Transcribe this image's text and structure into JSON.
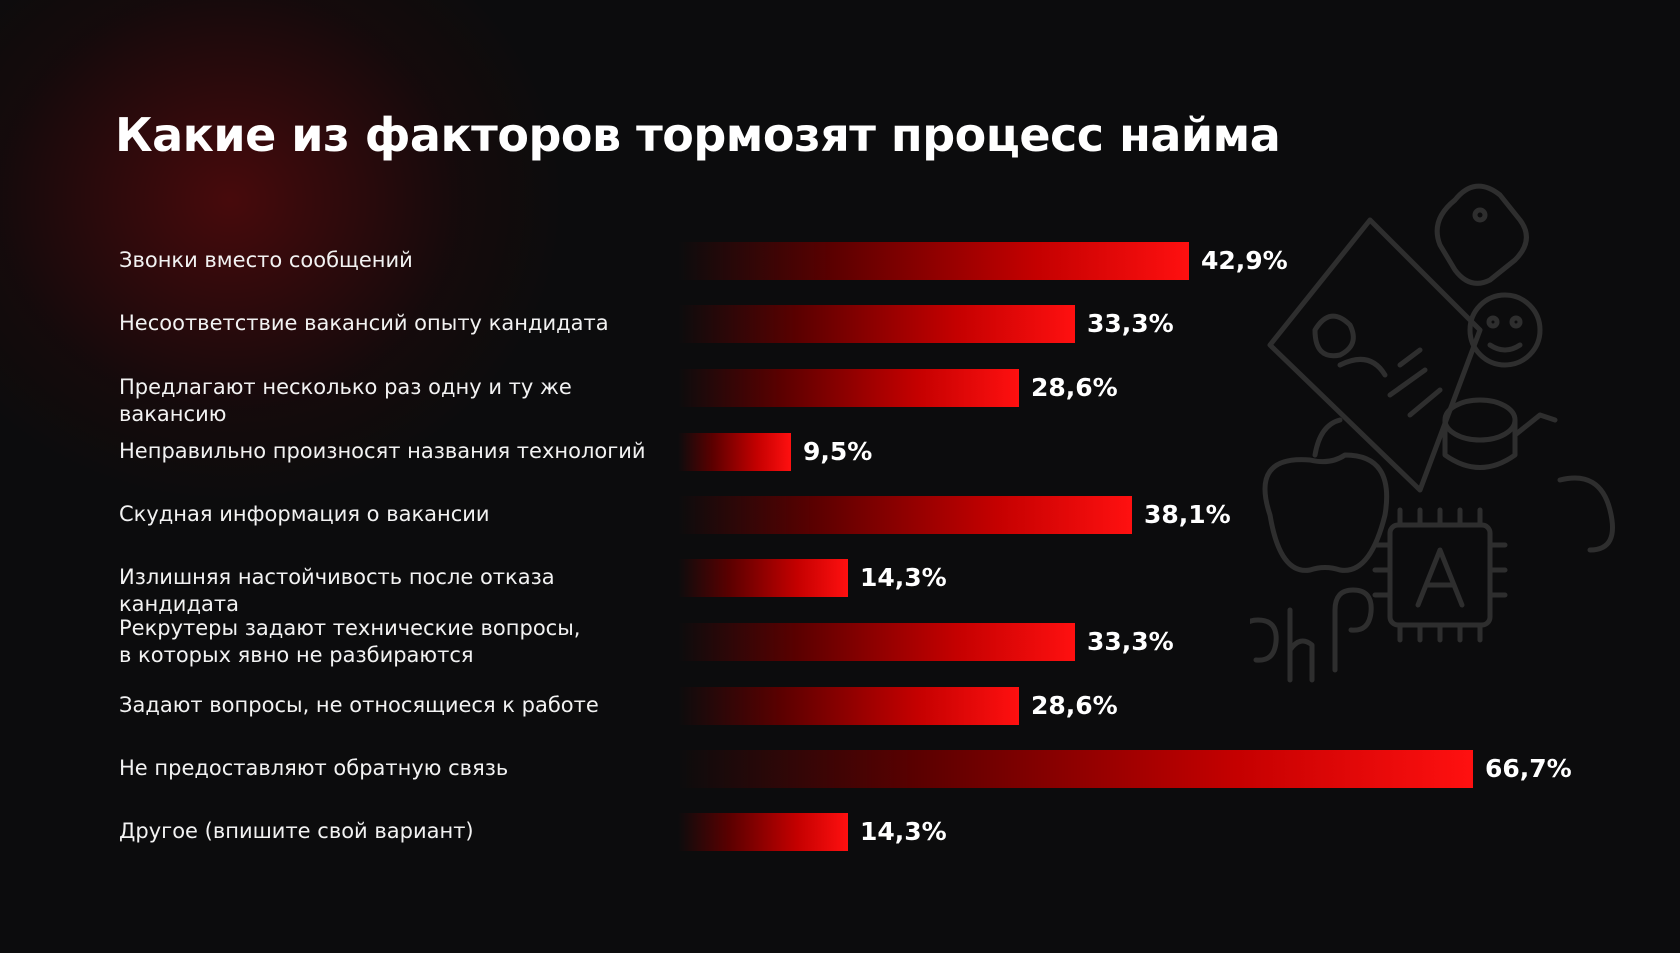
{
  "title": "Какие из факторов тормозят процесс найма",
  "doodles": [
    "job-document-icon",
    "php-logo-icon",
    "ai-chip-icon",
    "apple-icon",
    "python-icon",
    "database-icon",
    "emoji-face-icon"
  ],
  "colors": {
    "background": "#0c0c0d",
    "bar_start": "#5a0000",
    "bar_end": "#ff1010",
    "text": "#ffffff"
  },
  "chart_data": {
    "type": "bar",
    "orientation": "horizontal",
    "title": "Какие из факторов тормозят процесс найма",
    "categories": [
      "Звонки вместо сообщений",
      "Несоответствие вакансий опыту кандидата",
      "Предлагают несколько раз одну и ту же вакансию",
      "Неправильно произносят названия технологий",
      "Скудная информация о вакансии",
      "Излишняя настойчивость после отказа кандидата",
      "Рекрутеры задают технические вопросы,\nв которых явно не разбираются",
      "Задают вопросы, не относящиеся к работе",
      "Не предоставляют обратную связь",
      "Другое (впишите свой вариант)"
    ],
    "values": [
      42.9,
      33.3,
      28.6,
      9.5,
      38.1,
      14.3,
      33.3,
      28.6,
      66.7,
      14.3
    ],
    "value_labels": [
      "42,9%",
      "33,3%",
      "28,6%",
      "9,5%",
      "38,1%",
      "14,3%",
      "33,3%",
      "28,6%",
      "66,7%",
      "14,3%"
    ],
    "unit": "%",
    "xlim": [
      0,
      66.7
    ],
    "grid": false,
    "legend": "none"
  }
}
